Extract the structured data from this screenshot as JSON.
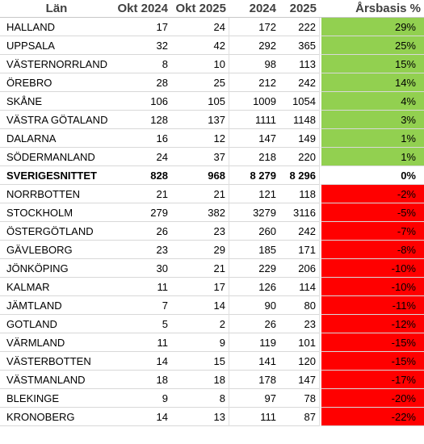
{
  "colors": {
    "positive": "#92d050",
    "negative": "#ff0000"
  },
  "headers": [
    "Län",
    "Okt 2024",
    "Okt 2025",
    "2024",
    "2025",
    "Årsbasis %"
  ],
  "rows": [
    {
      "name": "HALLAND",
      "okt2024": "17",
      "okt2025": "24",
      "y2024": "172",
      "y2025": "222",
      "pct": "29%",
      "tone": "positive"
    },
    {
      "name": "UPPSALA",
      "okt2024": "32",
      "okt2025": "42",
      "y2024": "292",
      "y2025": "365",
      "pct": "25%",
      "tone": "positive"
    },
    {
      "name": "VÄSTERNORRLAND",
      "okt2024": "8",
      "okt2025": "10",
      "y2024": "98",
      "y2025": "113",
      "pct": "15%",
      "tone": "positive"
    },
    {
      "name": "ÖREBRO",
      "okt2024": "28",
      "okt2025": "25",
      "y2024": "212",
      "y2025": "242",
      "pct": "14%",
      "tone": "positive"
    },
    {
      "name": "SKÅNE",
      "okt2024": "106",
      "okt2025": "105",
      "y2024": "1009",
      "y2025": "1054",
      "pct": "4%",
      "tone": "positive"
    },
    {
      "name": "VÄSTRA GÖTALAND",
      "okt2024": "128",
      "okt2025": "137",
      "y2024": "1111",
      "y2025": "1148",
      "pct": "3%",
      "tone": "positive"
    },
    {
      "name": "DALARNA",
      "okt2024": "16",
      "okt2025": "12",
      "y2024": "147",
      "y2025": "149",
      "pct": "1%",
      "tone": "positive"
    },
    {
      "name": "SÖDERMANLAND",
      "okt2024": "24",
      "okt2025": "37",
      "y2024": "218",
      "y2025": "220",
      "pct": "1%",
      "tone": "positive"
    },
    {
      "name": "SVERIGESNITTET",
      "okt2024": "828",
      "okt2025": "968",
      "y2024": "8 279",
      "y2025": "8 296",
      "pct": "0%",
      "tone": "neutral",
      "bold": true
    },
    {
      "name": "NORRBOTTEN",
      "okt2024": "21",
      "okt2025": "21",
      "y2024": "121",
      "y2025": "118",
      "pct": "-2%",
      "tone": "negative"
    },
    {
      "name": "STOCKHOLM",
      "okt2024": "279",
      "okt2025": "382",
      "y2024": "3279",
      "y2025": "3116",
      "pct": "-5%",
      "tone": "negative"
    },
    {
      "name": "ÖSTERGÖTLAND",
      "okt2024": "26",
      "okt2025": "23",
      "y2024": "260",
      "y2025": "242",
      "pct": "-7%",
      "tone": "negative"
    },
    {
      "name": "GÄVLEBORG",
      "okt2024": "23",
      "okt2025": "29",
      "y2024": "185",
      "y2025": "171",
      "pct": "-8%",
      "tone": "negative"
    },
    {
      "name": "JÖNKÖPING",
      "okt2024": "30",
      "okt2025": "21",
      "y2024": "229",
      "y2025": "206",
      "pct": "-10%",
      "tone": "negative"
    },
    {
      "name": "KALMAR",
      "okt2024": "11",
      "okt2025": "17",
      "y2024": "126",
      "y2025": "114",
      "pct": "-10%",
      "tone": "negative"
    },
    {
      "name": "JÄMTLAND",
      "okt2024": "7",
      "okt2025": "14",
      "y2024": "90",
      "y2025": "80",
      "pct": "-11%",
      "tone": "negative"
    },
    {
      "name": "GOTLAND",
      "okt2024": "5",
      "okt2025": "2",
      "y2024": "26",
      "y2025": "23",
      "pct": "-12%",
      "tone": "negative"
    },
    {
      "name": "VÄRMLAND",
      "okt2024": "11",
      "okt2025": "9",
      "y2024": "119",
      "y2025": "101",
      "pct": "-15%",
      "tone": "negative"
    },
    {
      "name": "VÄSTERBOTTEN",
      "okt2024": "14",
      "okt2025": "15",
      "y2024": "141",
      "y2025": "120",
      "pct": "-15%",
      "tone": "negative"
    },
    {
      "name": "VÄSTMANLAND",
      "okt2024": "18",
      "okt2025": "18",
      "y2024": "178",
      "y2025": "147",
      "pct": "-17%",
      "tone": "negative"
    },
    {
      "name": "BLEKINGE",
      "okt2024": "9",
      "okt2025": "8",
      "y2024": "97",
      "y2025": "78",
      "pct": "-20%",
      "tone": "negative"
    },
    {
      "name": "KRONOBERG",
      "okt2024": "14",
      "okt2025": "13",
      "y2024": "111",
      "y2025": "87",
      "pct": "-22%",
      "tone": "negative"
    }
  ]
}
